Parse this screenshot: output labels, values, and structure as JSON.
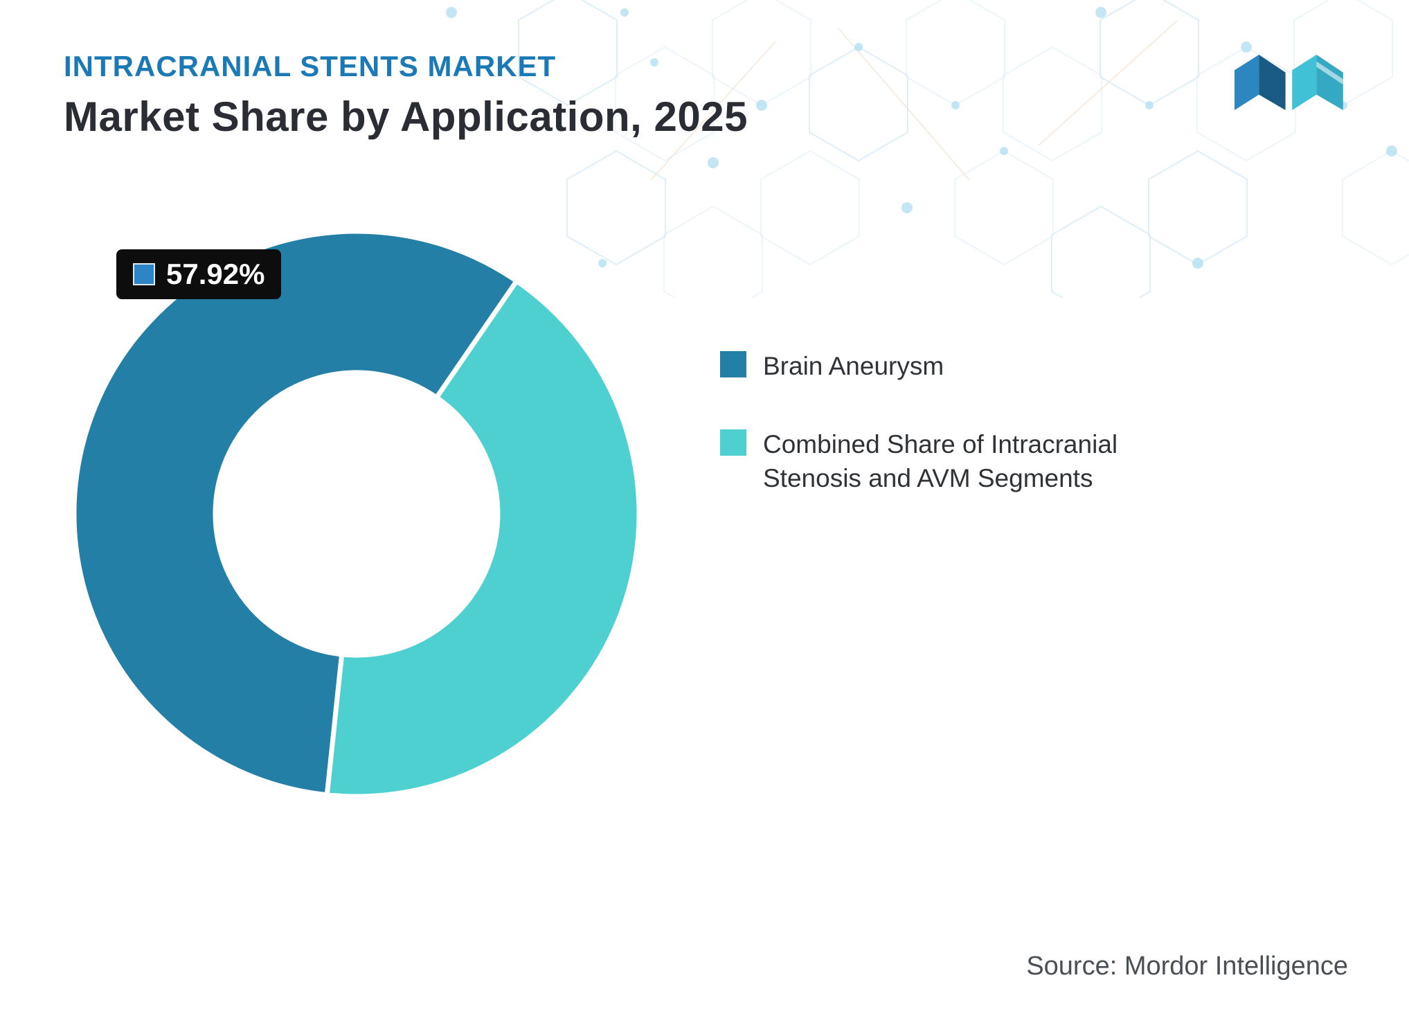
{
  "header": {
    "kicker": "INTRACRANIAL STENTS MARKET",
    "title": "Market Share by Application, 2025"
  },
  "callout": {
    "value_label": "57.92%",
    "swatch_color": "#2D85C5"
  },
  "legend": [
    {
      "label": "Brain Aneurysm",
      "color": "#247FA6"
    },
    {
      "label": "Combined Share of Intracranial Stenosis and AVM Segments",
      "color": "#4ECFD0"
    }
  ],
  "source": {
    "text": "Source: Mordor Intelligence"
  },
  "colors": {
    "accent_blue": "#1B79B5",
    "title_dark": "#2A2D33",
    "slice_primary": "#247FA6",
    "slice_secondary": "#4ECFD0",
    "callout_bg": "#0D0D0D"
  },
  "chart_data": {
    "type": "pie",
    "donut": true,
    "title": "Market Share by Application, 2025",
    "categories": [
      "Brain Aneurysm",
      "Combined Share of Intracranial Stenosis and AVM Segments"
    ],
    "values": [
      57.92,
      42.08
    ],
    "colors": [
      "#247FA6",
      "#4ECFD0"
    ],
    "data_labels": [
      "57.92%",
      null
    ],
    "start_angle_deg": 186,
    "inner_radius_ratio": 0.5,
    "legend_position": "right",
    "source": "Mordor Intelligence"
  }
}
